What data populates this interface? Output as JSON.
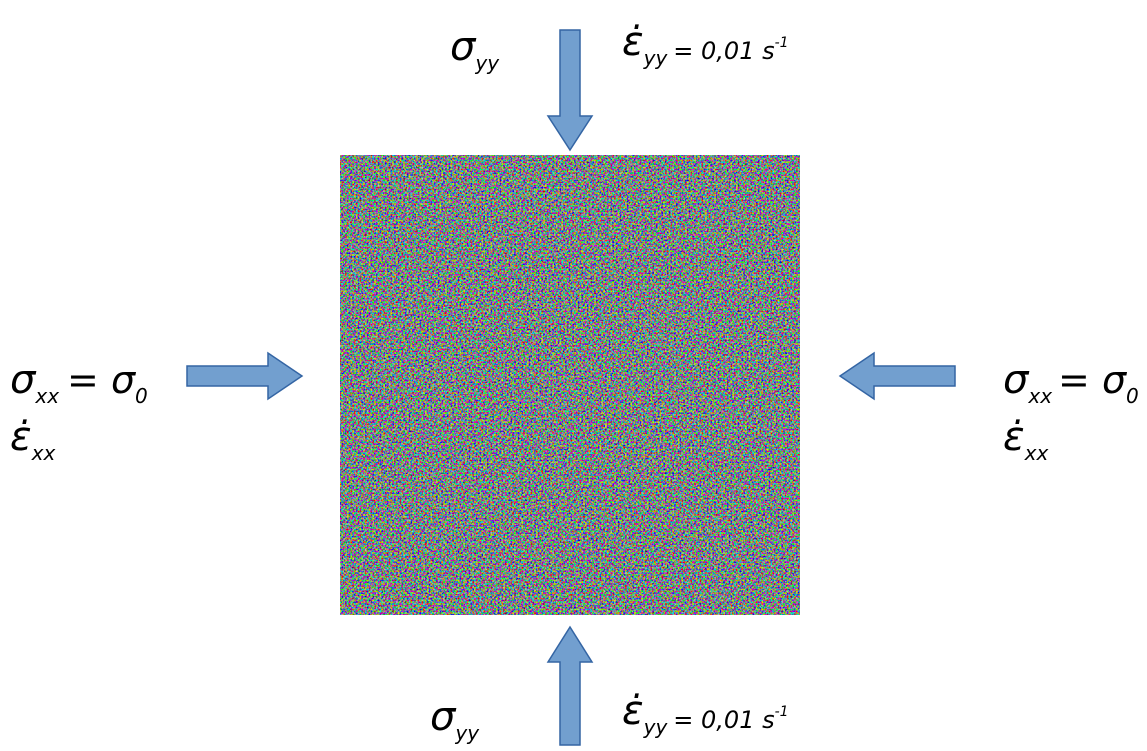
{
  "labels": {
    "top_stress": {
      "symbol": "σ",
      "subscript": "yy"
    },
    "top_strain_rate": {
      "symbol": "ε̇",
      "subscript": "yy",
      "value": "= 0,01 s",
      "superscript": "-1"
    },
    "left_stress": {
      "symbol": "σ",
      "subscript": "xx",
      "equals": "= σ",
      "equals_subscript": "0"
    },
    "left_strain_rate": {
      "symbol": "ε̇",
      "subscript": "xx"
    },
    "right_stress": {
      "symbol": "σ",
      "subscript": "xx",
      "equals": "= σ",
      "equals_subscript": "0"
    },
    "right_strain_rate": {
      "symbol": "ε̇",
      "subscript": "xx"
    },
    "bottom_stress": {
      "symbol": "σ",
      "subscript": "yy"
    },
    "bottom_strain_rate": {
      "symbol": "ε̇",
      "subscript": "yy",
      "value": "= 0,01 s",
      "superscript": "-1"
    }
  }
}
